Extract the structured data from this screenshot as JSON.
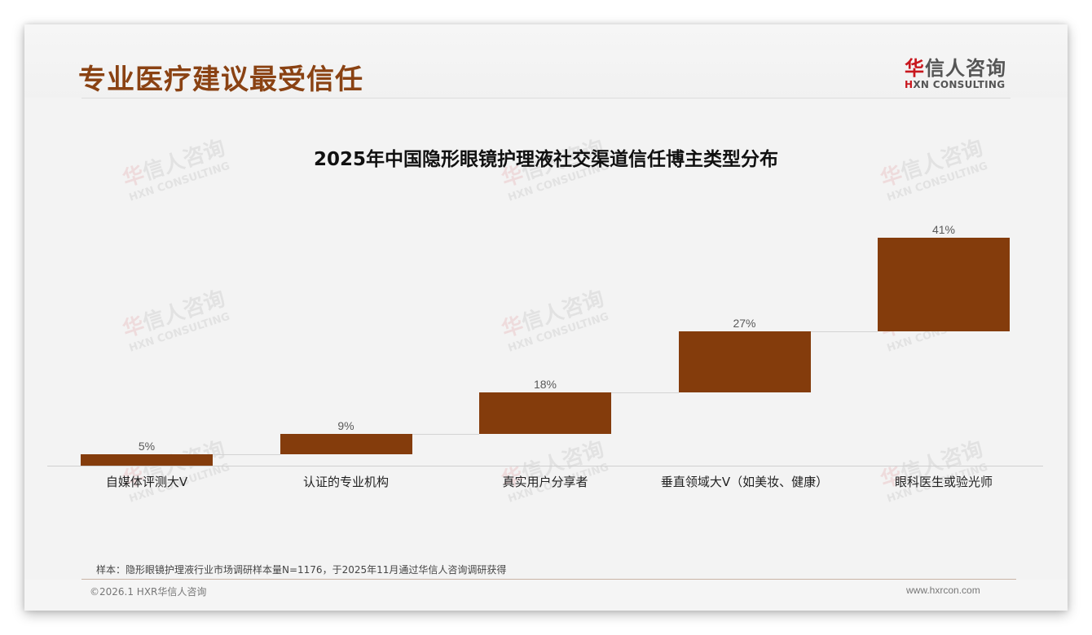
{
  "header": {
    "title": "专业医疗建议最受信任",
    "logo": {
      "cn_red": "华",
      "cn_rest": "信人咨询",
      "en_red": "H",
      "en_rest": "XN CONSULTING"
    }
  },
  "watermark": {
    "cn_red": "华",
    "cn_rest": "信人咨询",
    "en": "HXN CONSULTING"
  },
  "chart_data": {
    "type": "bar",
    "subtype": "waterfall",
    "title": "2025年中国隐形眼镜护理液社交渠道信任博主类型分布",
    "categories": [
      "自媒体评测大V",
      "认证的专业机构",
      "真实用户分享者",
      "垂直领域大V（如美妆、健康）",
      "眼科医生或验光师"
    ],
    "values": [
      5,
      9,
      18,
      27,
      41
    ],
    "value_labels": [
      "5%",
      "9%",
      "18%",
      "27%",
      "41%"
    ],
    "unit": "%",
    "xlabel": "",
    "ylabel": "",
    "ylim": [
      0,
      100
    ],
    "grid": false,
    "legend": null,
    "bar_color": "#843c0c"
  },
  "footer": {
    "source_note": "样本：隐形眼镜护理液行业市场调研样本量N=1176，于2025年11月通过华信人咨询调研获得",
    "copyright": "©2026.1 HXR华信人咨询",
    "website": "www.hxrcon.com"
  }
}
